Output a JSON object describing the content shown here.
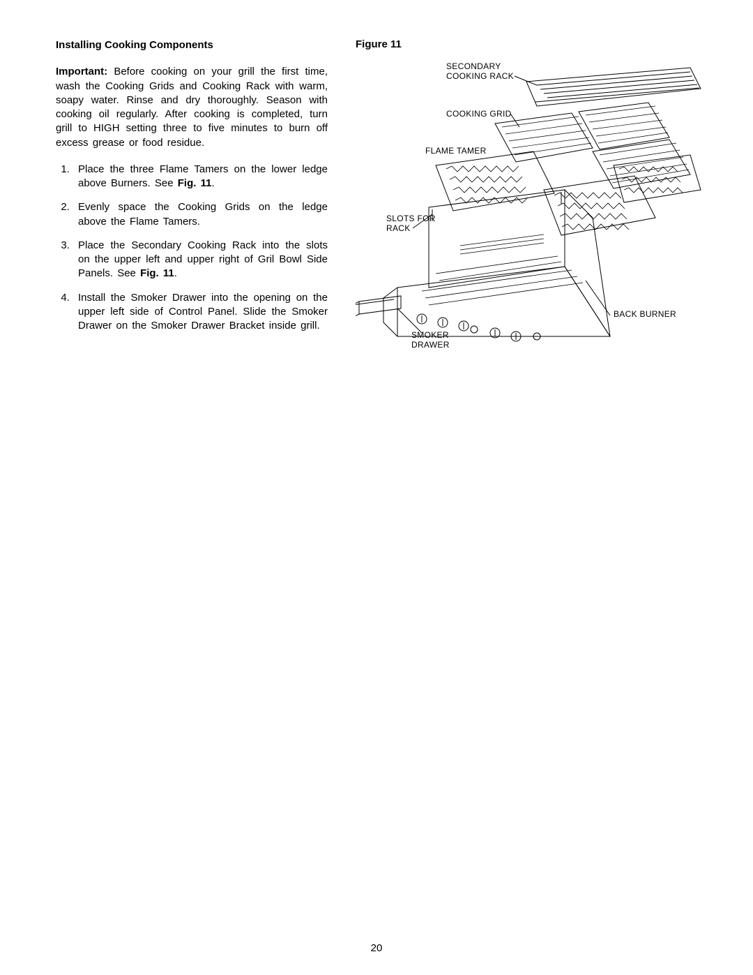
{
  "left": {
    "heading": "Installing Cooking Components",
    "intro_lead": "Important:",
    "intro_body": " Before cooking on your grill the first time, wash the Cooking Grids and Cooking Rack with warm, soapy water. Rinse and dry thoroughly. Season with cooking oil regularly. After cooking is completed, turn grill to HIGH setting three to five minutes to burn off excess grease or food residue.",
    "steps": [
      {
        "pre": "Place the three Flame Tamers on the lower ledge above Burners. See ",
        "ref": "Fig. 11",
        "post": "."
      },
      {
        "pre": "Evenly space the Cooking Grids on the ledge above the Flame Tamers.",
        "ref": "",
        "post": ""
      },
      {
        "pre": "Place the Secondary Cooking Rack into the slots on the upper left and upper right of Gril Bowl Side Panels. See ",
        "ref": "Fig. 11",
        "post": "."
      },
      {
        "pre": "Install the Smoker Drawer into the opening on the upper left side of Control Panel. Slide the Smoker Drawer on the Smoker Drawer Bracket inside grill.",
        "ref": "",
        "post": ""
      }
    ]
  },
  "figure": {
    "title": "Figure  11",
    "callouts": {
      "secondary_rack": "SECONDARY\nCOOKING RACK",
      "cooking_grid": "COOKING GRID",
      "flame_tamer": "FLAME  TAMER",
      "slots": "SLOTS FOR\nRACK",
      "smoker": "SMOKER\nDRAWER",
      "back_burner": "BACK BURNER"
    },
    "style": {
      "stroke": "#000000",
      "stroke_width": 1,
      "background": "#ffffff"
    }
  },
  "page_number": "20"
}
